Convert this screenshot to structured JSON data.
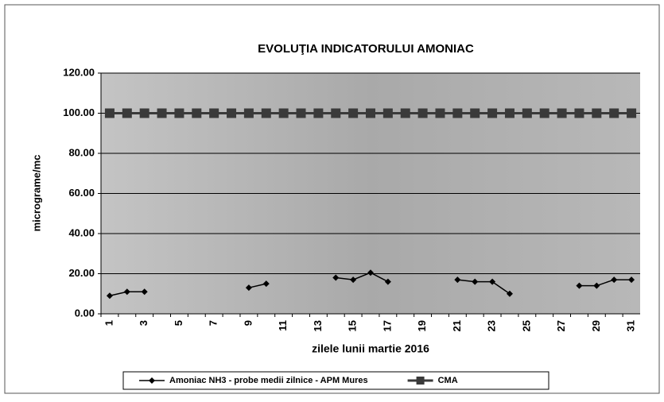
{
  "chart_data": {
    "type": "line",
    "title": "EVOLUŢIA INDICATORULUI AMONIAC",
    "x_label": "zilele lunii martie 2016",
    "y_label": "micrograme/mc",
    "categories": [
      "1",
      null,
      "3",
      null,
      "5",
      null,
      "7",
      null,
      "9",
      null,
      "11",
      null,
      "13",
      null,
      "15",
      null,
      "17",
      null,
      "19",
      null,
      "21",
      null,
      "23",
      null,
      "25",
      null,
      "27",
      null,
      "29",
      null,
      "31"
    ],
    "series": [
      {
        "name": "Amoniac NH3 - probe medii zilnice - APM Mures",
        "color": "#000000",
        "marker": "diamond",
        "values": [
          9,
          11,
          11,
          null,
          null,
          null,
          null,
          null,
          13,
          15,
          null,
          null,
          null,
          18,
          17,
          20.5,
          16,
          null,
          null,
          null,
          17,
          16,
          16,
          10,
          null,
          null,
          null,
          14,
          14,
          17,
          17
        ]
      },
      {
        "name": "CMA",
        "color": "#3a3a3a",
        "marker": "square",
        "values": [
          100,
          100,
          100,
          100,
          100,
          100,
          100,
          100,
          100,
          100,
          100,
          100,
          100,
          100,
          100,
          100,
          100,
          100,
          100,
          100,
          100,
          100,
          100,
          100,
          100,
          100,
          100,
          100,
          100,
          100,
          100
        ]
      }
    ],
    "ylim": [
      0,
      120
    ],
    "yticks": [
      {
        "value": 0,
        "label": "0.00"
      },
      {
        "value": 20,
        "label": "20.00"
      },
      {
        "value": 40,
        "label": "40.00"
      },
      {
        "value": 60,
        "label": "60.00"
      },
      {
        "value": 80,
        "label": "80.00"
      },
      {
        "value": 100,
        "label": "100.00"
      },
      {
        "value": 120,
        "label": "120.00"
      }
    ],
    "grid": true,
    "legend": "bottom"
  }
}
